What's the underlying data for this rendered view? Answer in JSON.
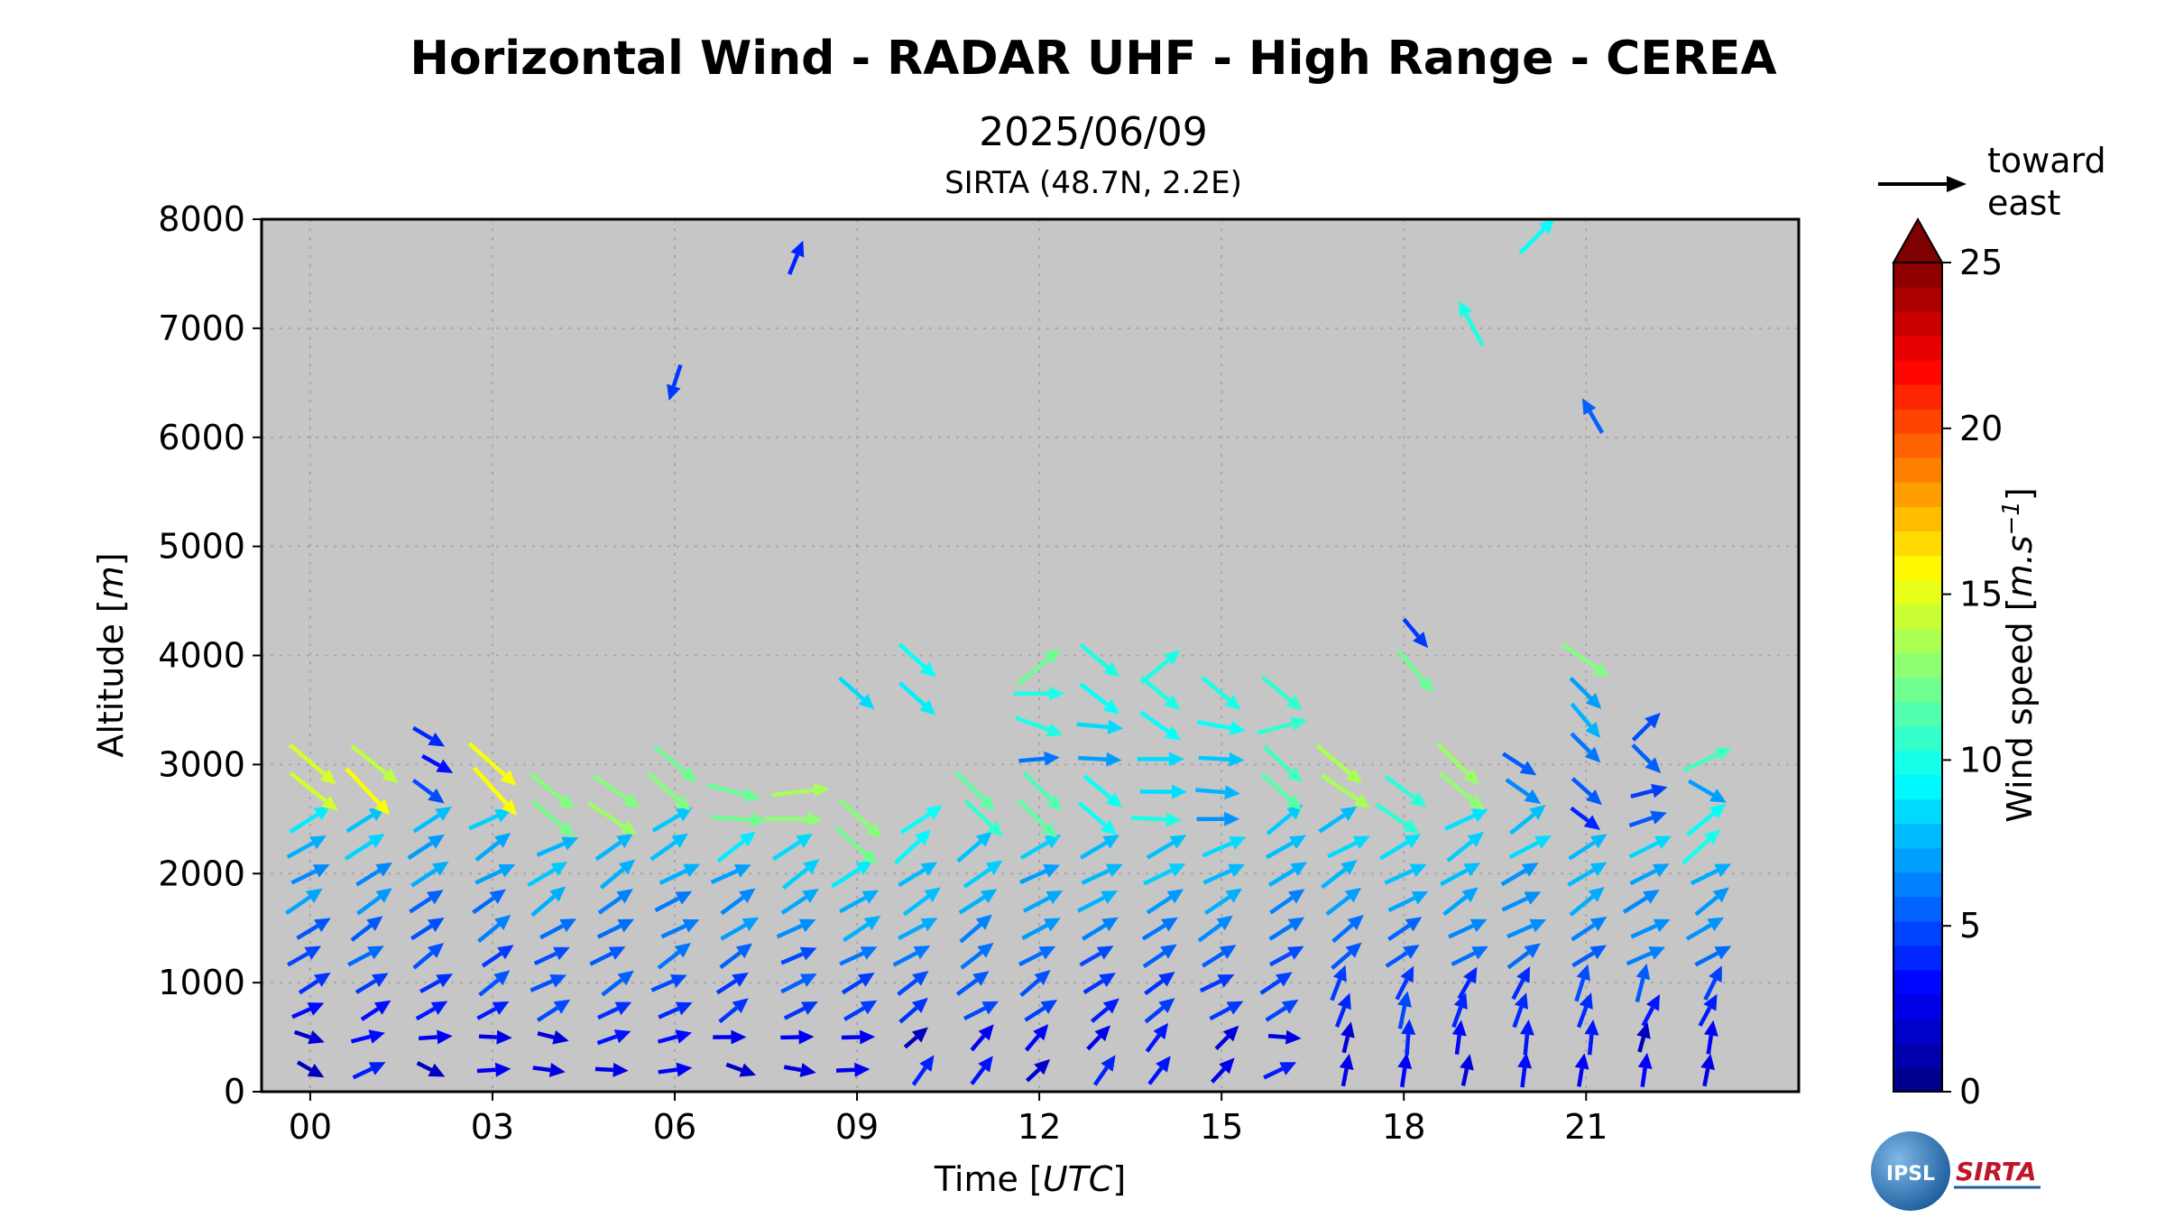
{
  "chart_data": {
    "type": "quiver",
    "title": "Horizontal Wind - RADAR UHF - High Range - CEREA",
    "date": "2025/06/09",
    "station": "SIRTA (48.7N, 2.2E)",
    "xlabel_text": "Time [",
    "xlabel_unit": "UTC",
    "xlabel_close": "]",
    "ylabel_text": "Altitude [",
    "ylabel_unit": "m",
    "ylabel_close": "]",
    "xlim": [
      -0.8,
      24.5
    ],
    "ylim": [
      0,
      8000
    ],
    "xticks": [
      {
        "value": 0,
        "label": "00"
      },
      {
        "value": 3,
        "label": "03"
      },
      {
        "value": 6,
        "label": "06"
      },
      {
        "value": 9,
        "label": "09"
      },
      {
        "value": 12,
        "label": "12"
      },
      {
        "value": 15,
        "label": "15"
      },
      {
        "value": 18,
        "label": "18"
      },
      {
        "value": 21,
        "label": "21"
      }
    ],
    "yticks": [
      0,
      1000,
      2000,
      3000,
      4000,
      5000,
      6000,
      7000,
      8000
    ],
    "grid": true,
    "colorbar": {
      "label_text": "Wind speed [",
      "label_unit": "m.s",
      "label_exp": "−1",
      "label_close": "]",
      "min": 0,
      "max": 25,
      "ticks": [
        0,
        5,
        10,
        15,
        20,
        25
      ],
      "extend": "max",
      "colormap": "jet"
    },
    "reference_arrow": {
      "label_line1": "toward",
      "label_line2": "east",
      "speed": 5
    },
    "sparse_points": [
      {
        "t": 6.0,
        "alt": 6500,
        "speed": 4.5,
        "dir_deg": -108
      },
      {
        "t": 8.0,
        "alt": 7650,
        "speed": 4.0,
        "dir_deg": 68
      },
      {
        "t": 19.1,
        "alt": 7050,
        "speed": 10.0,
        "dir_deg": 118
      },
      {
        "t": 20.2,
        "alt": 7850,
        "speed": 9.5,
        "dir_deg": 45
      },
      {
        "t": 21.1,
        "alt": 6200,
        "speed": 5.5,
        "dir_deg": 120
      },
      {
        "t": 18.2,
        "alt": 4200,
        "speed": 4.5,
        "dir_deg": -50
      },
      {
        "t": 18.2,
        "alt": 3850,
        "speed": 12.0,
        "dir_deg": -50
      },
      {
        "t": 9.0,
        "alt": 3650,
        "speed": 8.5,
        "dir_deg": -42
      },
      {
        "t": 10.0,
        "alt": 3950,
        "speed": 9.5,
        "dir_deg": -42
      },
      {
        "t": 10.0,
        "alt": 3600,
        "speed": 9.0,
        "dir_deg": -42
      },
      {
        "t": 12.0,
        "alt": 3900,
        "speed": 12.0,
        "dir_deg": 40
      },
      {
        "t": 12.0,
        "alt": 3650,
        "speed": 10.0,
        "dir_deg": 0
      },
      {
        "t": 12.0,
        "alt": 3350,
        "speed": 10.0,
        "dir_deg": -20
      },
      {
        "t": 12.0,
        "alt": 3050,
        "speed": 6.0,
        "dir_deg": 5
      },
      {
        "t": 13.0,
        "alt": 3950,
        "speed": 10.0,
        "dir_deg": -40
      },
      {
        "t": 13.0,
        "alt": 3600,
        "speed": 9.5,
        "dir_deg": -38
      },
      {
        "t": 13.0,
        "alt": 3350,
        "speed": 8.5,
        "dir_deg": -5
      },
      {
        "t": 13.0,
        "alt": 3050,
        "speed": 7.0,
        "dir_deg": -3
      },
      {
        "t": 14.0,
        "alt": 3900,
        "speed": 10.0,
        "dir_deg": 40
      },
      {
        "t": 14.0,
        "alt": 3650,
        "speed": 10.0,
        "dir_deg": -40
      },
      {
        "t": 14.0,
        "alt": 3350,
        "speed": 9.5,
        "dir_deg": -35
      },
      {
        "t": 14.0,
        "alt": 3050,
        "speed": 8.5,
        "dir_deg": 0
      },
      {
        "t": 15.0,
        "alt": 3650,
        "speed": 10.0,
        "dir_deg": -40
      },
      {
        "t": 15.0,
        "alt": 3350,
        "speed": 9.5,
        "dir_deg": -10
      },
      {
        "t": 15.0,
        "alt": 3050,
        "speed": 8.0,
        "dir_deg": -3
      },
      {
        "t": 16.0,
        "alt": 3650,
        "speed": 10.5,
        "dir_deg": -40
      },
      {
        "t": 16.0,
        "alt": 3350,
        "speed": 10.5,
        "dir_deg": 15
      },
      {
        "t": 21.0,
        "alt": 3950,
        "speed": 12.5,
        "dir_deg": -35
      },
      {
        "t": 21.0,
        "alt": 3650,
        "speed": 7.0,
        "dir_deg": -45
      },
      {
        "t": 21.0,
        "alt": 3400,
        "speed": 7.5,
        "dir_deg": -50
      },
      {
        "t": 21.0,
        "alt": 3150,
        "speed": 6.0,
        "dir_deg": -45
      },
      {
        "t": 22.0,
        "alt": 3350,
        "speed": 5.0,
        "dir_deg": 45
      },
      {
        "t": 22.0,
        "alt": 3050,
        "speed": 5.5,
        "dir_deg": -45
      },
      {
        "t": 23.0,
        "alt": 3050,
        "speed": 11.0,
        "dir_deg": 25
      },
      {
        "t": 23.0,
        "alt": 2750,
        "speed": 7.0,
        "dir_deg": -30
      }
    ],
    "profiles": [
      {
        "t": 0.0,
        "top": 3100,
        "hi_speed": 14,
        "hi_dir": -45
      },
      {
        "t": 1.0,
        "top": 3150,
        "hi_speed": 15,
        "hi_dir": -40
      },
      {
        "t": 2.0,
        "top": 3300,
        "hi_speed": 4,
        "hi_dir": -35
      },
      {
        "t": 3.0,
        "top": 3150,
        "hi_speed": 15,
        "hi_dir": -45
      },
      {
        "t": 4.0,
        "top": 2800,
        "hi_speed": 13,
        "hi_dir": -40
      },
      {
        "t": 5.0,
        "top": 2800,
        "hi_speed": 13,
        "hi_dir": -40
      },
      {
        "t": 6.0,
        "top": 3100,
        "hi_speed": 12,
        "hi_dir": -45
      },
      {
        "t": 7.0,
        "top": 2750,
        "hi_speed": 12,
        "hi_dir": -10
      },
      {
        "t": 8.0,
        "top": 2750,
        "hi_speed": 13,
        "hi_dir": 5
      },
      {
        "t": 9.0,
        "top": 2500,
        "hi_speed": 13,
        "hi_dir": -40
      },
      {
        "t": 10.0,
        "top": 2500,
        "hi_speed": 9,
        "hi_dir": 40
      },
      {
        "t": 11.0,
        "top": 2800,
        "hi_speed": 11,
        "hi_dir": -45
      },
      {
        "t": 12.0,
        "top": 2800,
        "hi_speed": 11,
        "hi_dir": -40
      },
      {
        "t": 13.0,
        "top": 2800,
        "hi_speed": 9,
        "hi_dir": -35
      },
      {
        "t": 14.0,
        "top": 2800,
        "hi_speed": 9,
        "hi_dir": 0
      },
      {
        "t": 15.0,
        "top": 2800,
        "hi_speed": 7,
        "hi_dir": 0
      },
      {
        "t": 16.0,
        "top": 3050,
        "hi_speed": 11,
        "hi_dir": -40
      },
      {
        "t": 17.0,
        "top": 3100,
        "hi_speed": 13,
        "hi_dir": -40
      },
      {
        "t": 18.0,
        "top": 2800,
        "hi_speed": 11,
        "hi_dir": -40
      },
      {
        "t": 19.0,
        "top": 3100,
        "hi_speed": 13,
        "hi_dir": -40
      },
      {
        "t": 20.0,
        "top": 3050,
        "hi_speed": 6,
        "hi_dir": -30
      },
      {
        "t": 21.0,
        "top": 2900,
        "hi_speed": 5,
        "hi_dir": -40
      },
      {
        "t": 22.0,
        "top": 2800,
        "hi_speed": 5,
        "hi_dir": 20
      },
      {
        "t": 23.0,
        "top": 2600,
        "hi_speed": 9,
        "hi_dir": 40
      }
    ],
    "profile_levels": [
      200,
      500,
      750,
      1000,
      1250,
      1500,
      1750,
      2000,
      2250,
      2500,
      2750,
      3000,
      3250
    ],
    "logos": {
      "left": "IPSL",
      "right": "SIRTA"
    }
  }
}
